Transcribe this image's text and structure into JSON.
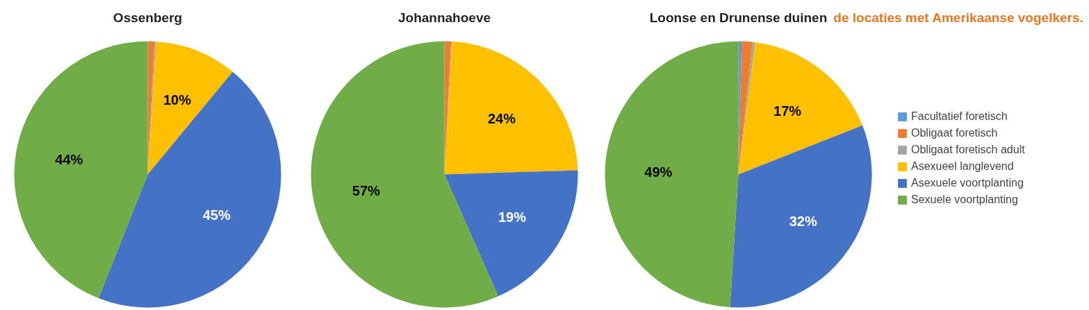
{
  "chart_data": [
    {
      "type": "pie",
      "title": "Ossenberg",
      "categories": [
        null,
        null,
        null,
        null,
        null,
        null
      ],
      "values": [
        0,
        0.8,
        0.2,
        10,
        45,
        44
      ],
      "colors": [
        "#5b9bd5",
        "#ed7d31",
        "#a5a5a5",
        "#ffc000",
        "#4472c4",
        "#70ad47"
      ],
      "value_labels": [
        null,
        null,
        null,
        "10%",
        "45%",
        "44%"
      ]
    },
    {
      "type": "pie",
      "title": "Johannahoeve",
      "categories": [
        null,
        null,
        null,
        null,
        null,
        null
      ],
      "values": [
        0,
        0.8,
        0.1,
        23.6,
        18.9,
        56.6
      ],
      "colors": [
        "#5b9bd5",
        "#ed7d31",
        "#a5a5a5",
        "#ffc000",
        "#4472c4",
        "#70ad47"
      ],
      "value_labels": [
        null,
        null,
        null,
        "24%",
        "19%",
        "57%"
      ]
    },
    {
      "type": "pie",
      "title": "Loonse en Drunense duinen",
      "categories": [
        "Facultatief foretisch",
        "Obligaat foretisch",
        "Obligaat foretisch adult",
        "Asexueel langlevend",
        "Asexuele voortplanting",
        "Sexuele voortplanting"
      ],
      "values": [
        0.4,
        1.3,
        0.3,
        17,
        32,
        49
      ],
      "colors": [
        "#5b9bd5",
        "#ed7d31",
        "#a5a5a5",
        "#ffc000",
        "#4472c4",
        "#70ad47"
      ],
      "value_labels": [
        null,
        null,
        null,
        "17%",
        "32%",
        "49%"
      ],
      "legend": "right",
      "annotations": [
        "de locaties met Amerikaanse vogelkers."
      ]
    }
  ]
}
